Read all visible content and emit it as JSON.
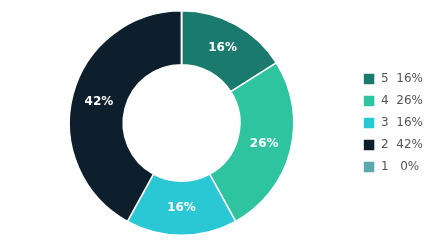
{
  "chart_data": {
    "type": "doughnut",
    "categories": [
      "5  16%",
      "4  26%",
      "3  16%",
      "2  42%",
      "1   0%"
    ],
    "values": [
      16,
      26,
      16,
      42,
      0.001
    ],
    "value_labels": [
      "16%",
      "26%",
      "16%",
      "42%",
      null
    ],
    "colors": [
      "#1a7a6e",
      "#2ec4a0",
      "#2ac8d4",
      "#0d1f2d",
      "#5ba8b0"
    ],
    "data_labels": true,
    "legend": "right"
  }
}
